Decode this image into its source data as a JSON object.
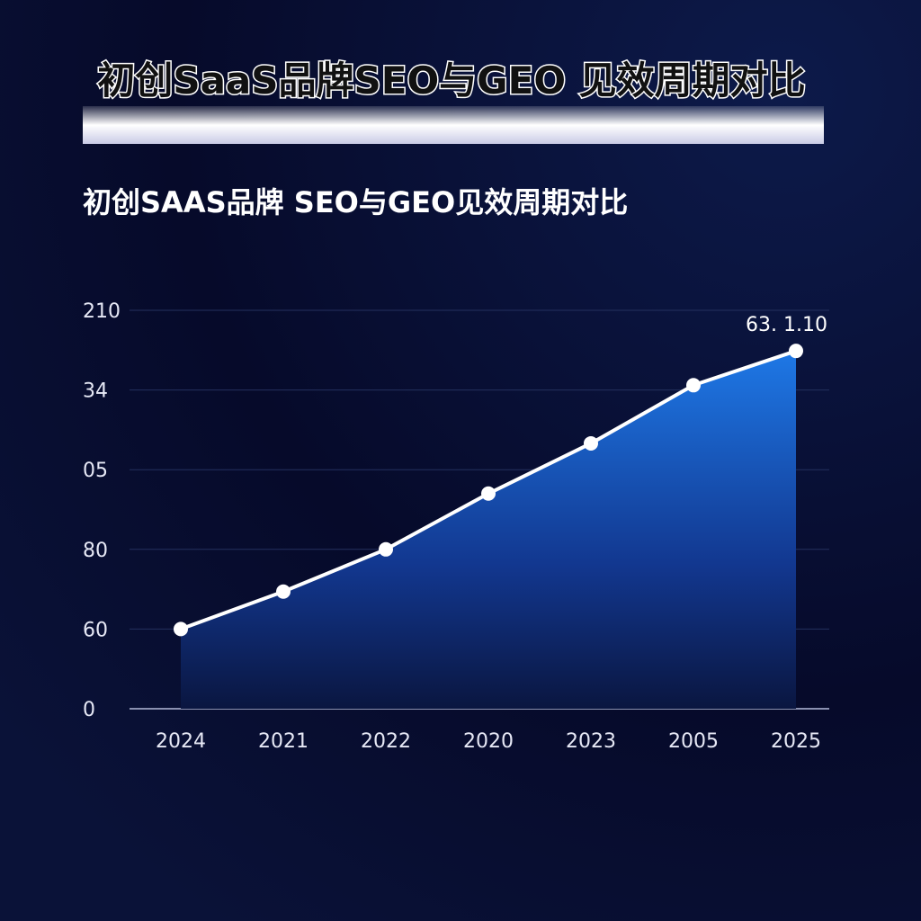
{
  "chart_data": {
    "type": "area",
    "title": "初创SaaS品牌SEO与GEO 见效周期对比",
    "subtitle": "初创SAAS品牌 SEO与GEO见效周期对比",
    "annotation": "63. 1.10",
    "categories": [
      "2024",
      "2021",
      "2022",
      "2020",
      "2023",
      "2005",
      "2025"
    ],
    "values": [
      1.0,
      1.47,
      2.0,
      2.7,
      3.33,
      4.06,
      4.49
    ],
    "color": "#1e6fd9",
    "ylim": [
      0,
      5
    ],
    "yticks": [
      {
        "value": 0,
        "label": "0"
      },
      {
        "value": 1,
        "label": "60"
      },
      {
        "value": 2,
        "label": "80"
      },
      {
        "value": 3,
        "label": "05"
      },
      {
        "value": 4,
        "label": "34"
      },
      {
        "value": 5,
        "label": "210"
      }
    ],
    "grid": true
  }
}
